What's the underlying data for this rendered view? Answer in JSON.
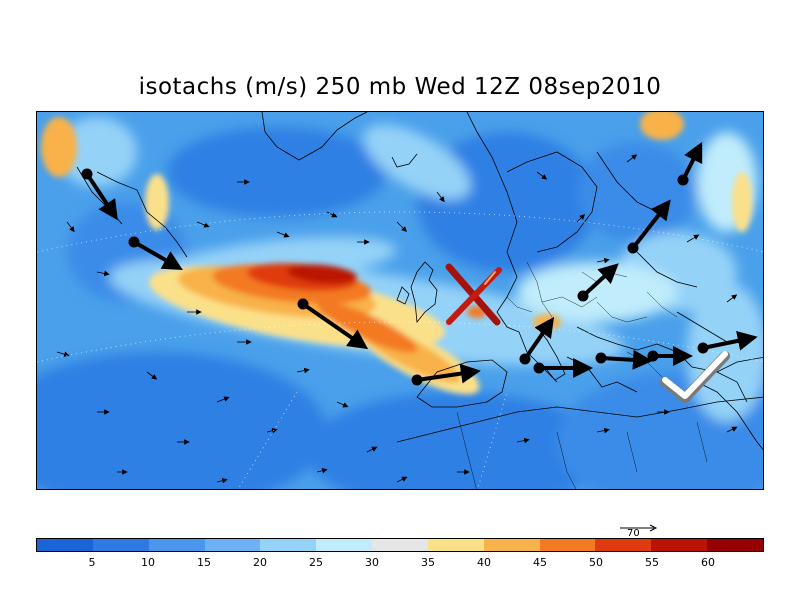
{
  "title": "isotachs (m/s) 250 mb Wed 12Z 08sep2010",
  "reference_vector": {
    "label": "70"
  },
  "colorbar": {
    "colors": [
      "#1a64d6",
      "#2d7ae3",
      "#4a96ec",
      "#6cb2f2",
      "#94d2f8",
      "#c0ecfb",
      "#e6e6e6",
      "#fbe08a",
      "#f8b24a",
      "#f37a22",
      "#e03a10",
      "#bb1406",
      "#960000"
    ],
    "ticks": [
      "5",
      "10",
      "15",
      "20",
      "25",
      "30",
      "35",
      "40",
      "45",
      "50",
      "55",
      "60"
    ]
  },
  "annotations": {
    "bad_mark": "red-x-mark",
    "good_mark": "white-check-mark",
    "arrow_color": "#000000"
  }
}
